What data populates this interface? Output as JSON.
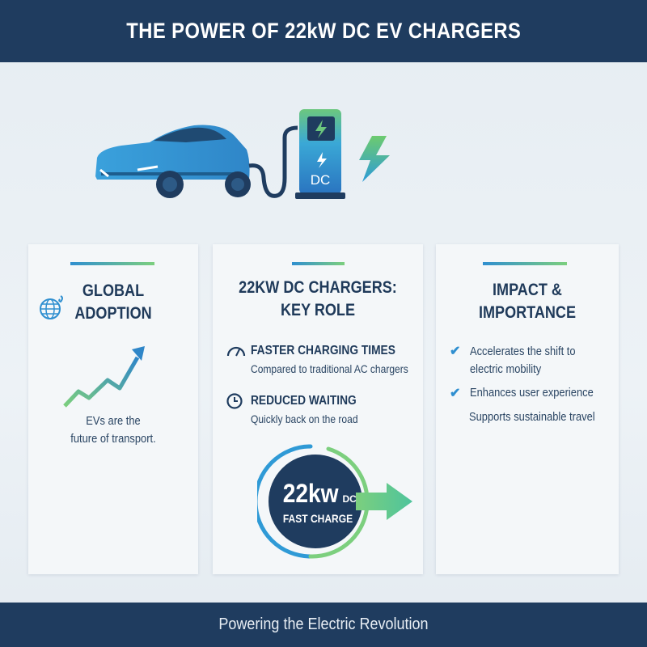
{
  "header": {
    "title": "THE POWER OF 22kW DC EV CHARGERS"
  },
  "hero": {
    "charger_label": "DC",
    "icons": [
      "car-icon",
      "charger-icon",
      "lightning-icon"
    ]
  },
  "cards": [
    {
      "title_line1": "GLOBAL",
      "title_line2": "ADOPTION",
      "icon": "globe-icon",
      "text_line1": "EVs are the",
      "text_line2": "future of transport."
    },
    {
      "title_line1": "22KW DC CHARGERS:",
      "title_line2": "KEY ROLE",
      "items": [
        {
          "icon": "speedometer-icon",
          "heading": "FASTER CHARGING TIMES",
          "text": "Compared to traditional AC chargers"
        },
        {
          "icon": "clock-icon",
          "heading": "REDUCED WAITING",
          "text": "Quickly back on the road"
        }
      ],
      "badge": {
        "value": "22kw",
        "unit": "DC",
        "label": "FAST CHARGE"
      }
    },
    {
      "title_line1": "IMPACT &",
      "title_line2": "IMPORTANCE",
      "items": [
        {
          "text_line1": "Accelerates the shift to",
          "text_line2": "electric mobility",
          "checked": true
        },
        {
          "text_line1": "Enhances user experience",
          "checked": true
        },
        {
          "text_line1": "Supports sustainable travel",
          "checked": false
        }
      ]
    }
  ],
  "footer": {
    "tagline": "Powering the Electric Revolution"
  },
  "colors": {
    "navy": "#1f3c5f",
    "blue": "#2f8fd0",
    "green": "#7ccf7e"
  }
}
